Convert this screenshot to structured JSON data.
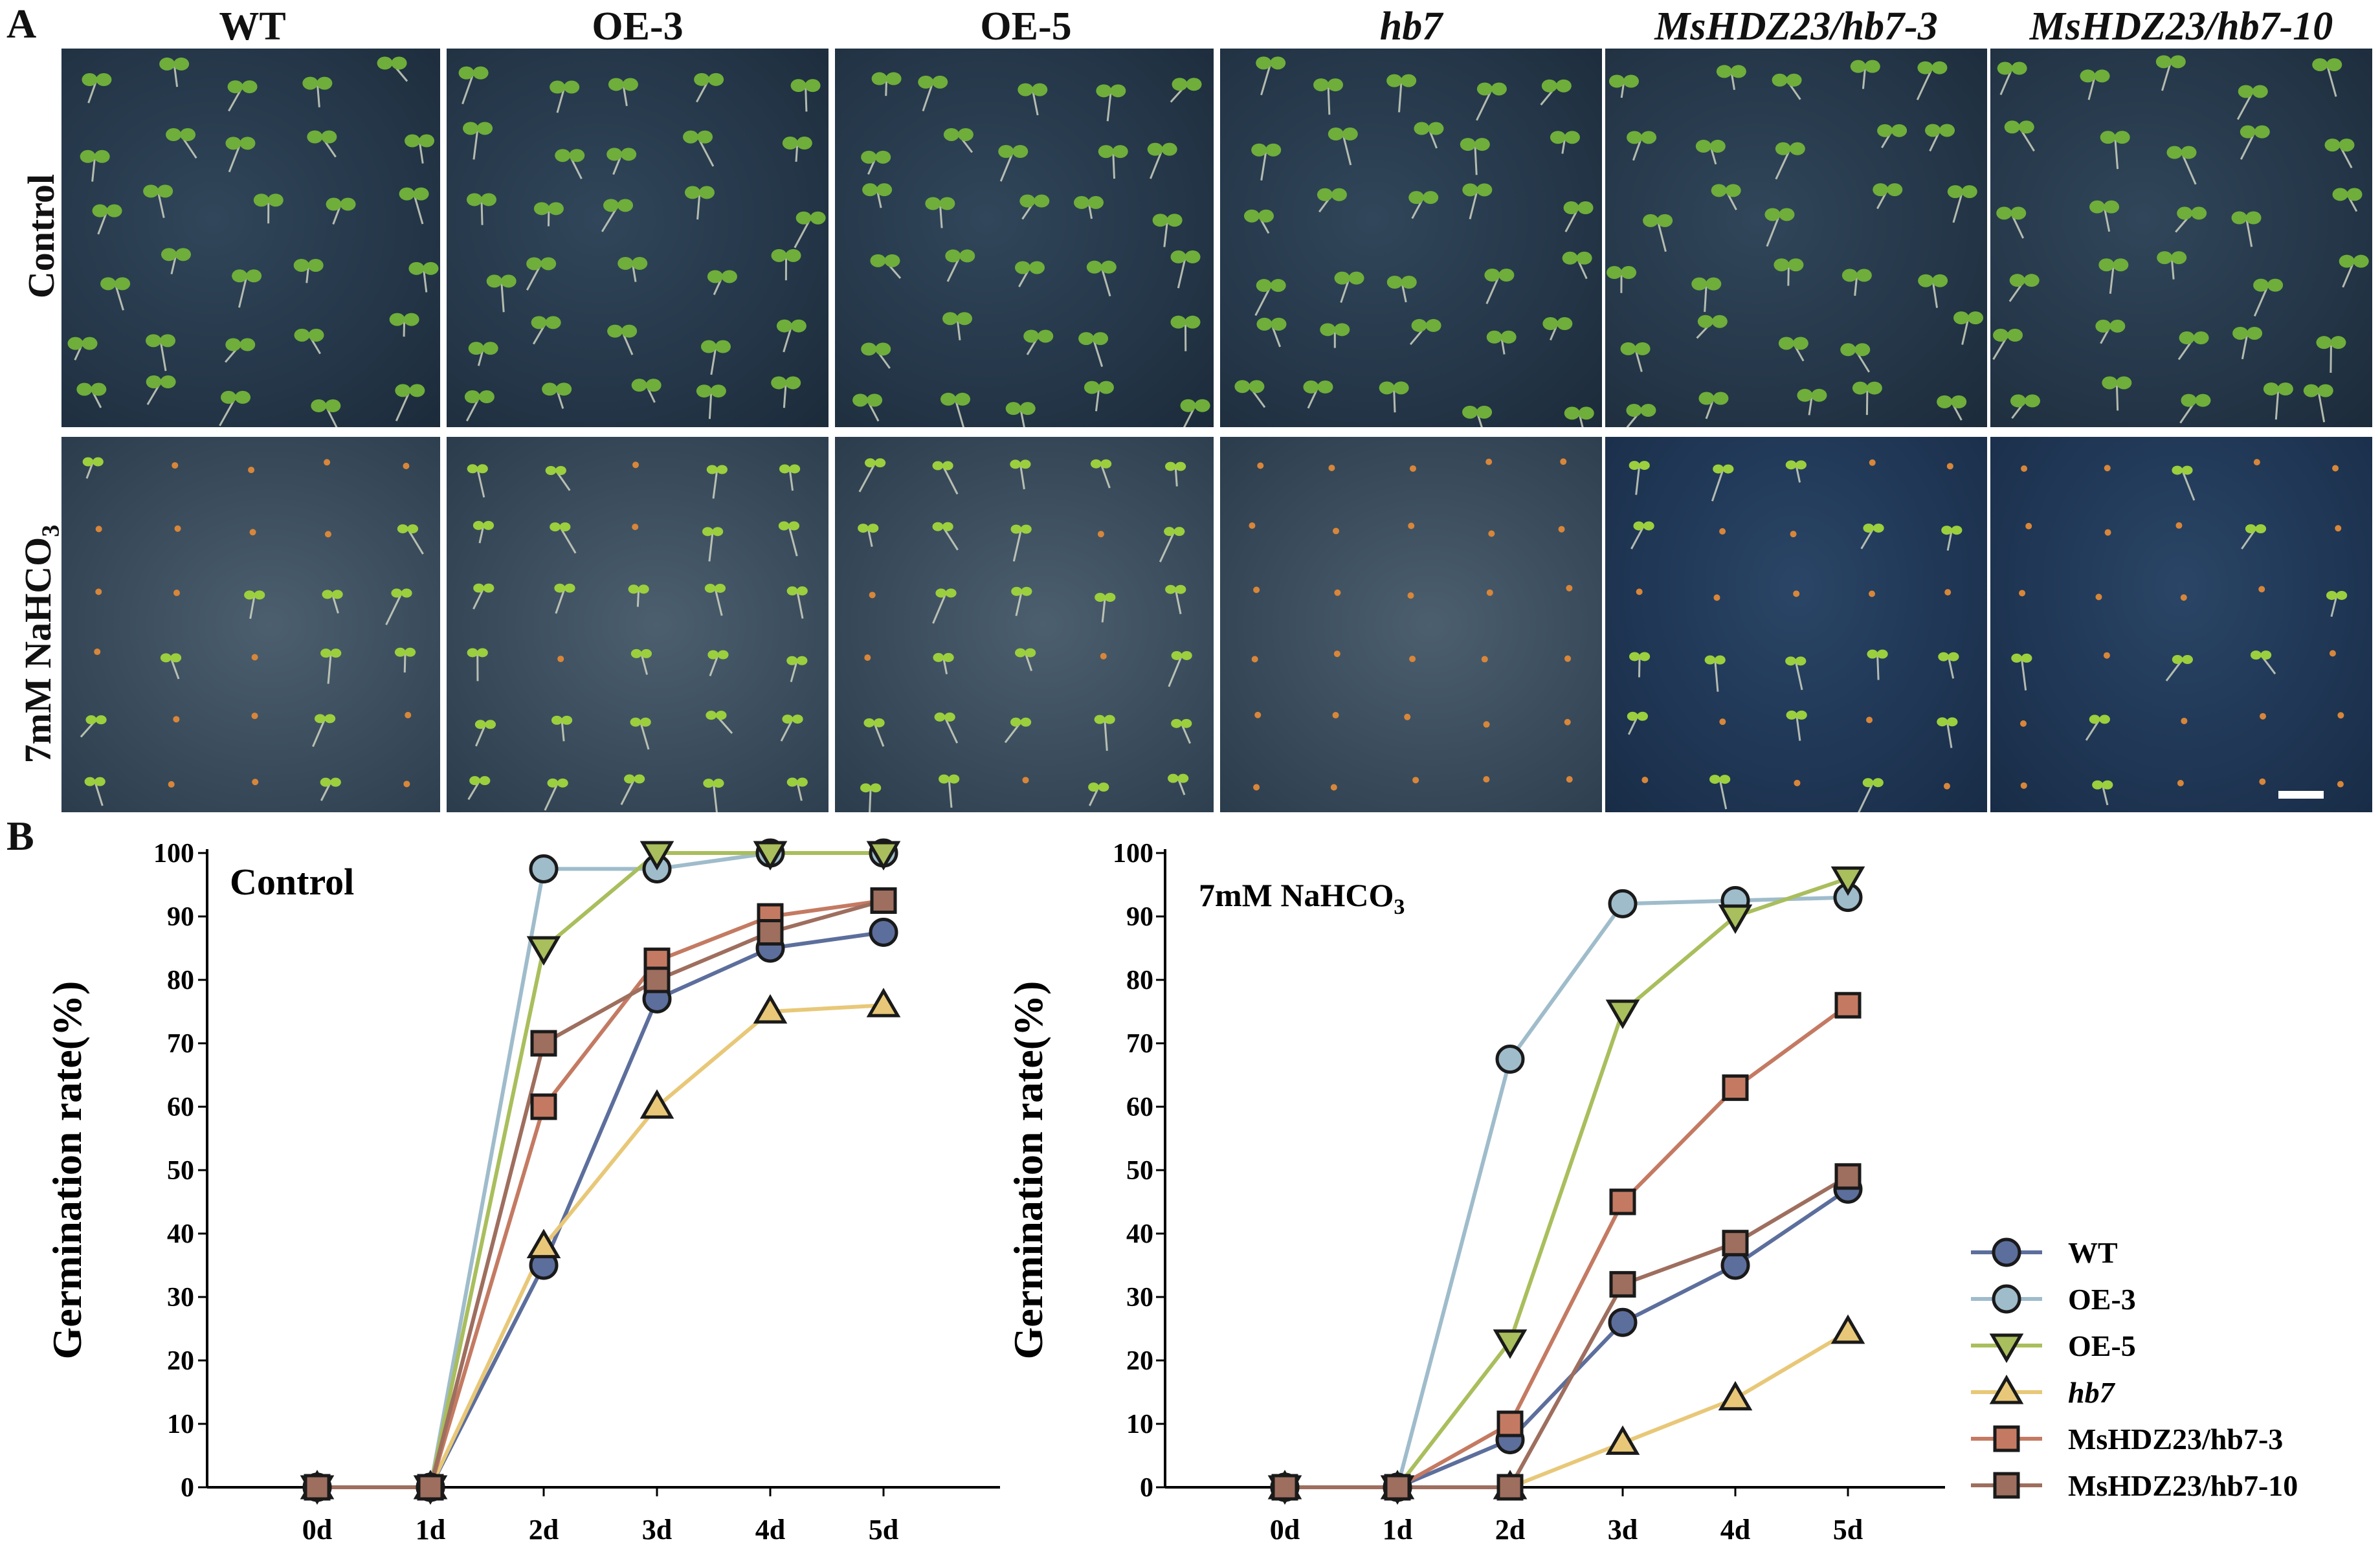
{
  "panel_letters": {
    "a": "A",
    "b": "B"
  },
  "columns": [
    {
      "label": "WT",
      "italic": false
    },
    {
      "label": "OE-3",
      "italic": false
    },
    {
      "label": "OE-5",
      "italic": false
    },
    {
      "label": "hb7",
      "italic": true
    },
    {
      "label": "MsHDZ23/hb7-3",
      "italic": true
    },
    {
      "label": "MsHDZ23/hb7-10",
      "italic": true
    }
  ],
  "rows": {
    "control": "Control",
    "salt_prefix": "7mM NaHCO",
    "salt_subscript": "3"
  },
  "colors": {
    "WT": "#5c6e9c",
    "OE-3": "#9fbccb",
    "OE-5": "#a9be5c",
    "hb7": "#e8c878",
    "MsHDZ23/hb7-3": "#c47a62",
    "MsHDZ23/hb7-10": "#9e6e5e"
  },
  "chart_data": [
    {
      "type": "line",
      "title": "Control",
      "xlabel": "",
      "ylabel": "Germination rate(%)",
      "categories": [
        "0d",
        "1d",
        "2d",
        "3d",
        "4d",
        "5d"
      ],
      "ylim": [
        0,
        100
      ],
      "yticks": [
        0,
        10,
        20,
        30,
        40,
        50,
        60,
        70,
        80,
        90,
        100
      ],
      "series": [
        {
          "name": "WT",
          "marker": "circle",
          "values": [
            0,
            0,
            35,
            77,
            85,
            87.5
          ]
        },
        {
          "name": "OE-3",
          "marker": "circle",
          "values": [
            0,
            0,
            97.5,
            97.5,
            100,
            100
          ]
        },
        {
          "name": "OE-5",
          "marker": "triangle-down",
          "values": [
            0,
            0,
            85,
            100,
            100,
            100
          ]
        },
        {
          "name": "hb7",
          "marker": "triangle-up",
          "values": [
            0,
            0,
            38,
            60,
            75,
            76
          ]
        },
        {
          "name": "MsHDZ23/hb7-3",
          "marker": "square",
          "values": [
            0,
            0,
            60,
            83,
            90,
            92.5
          ]
        },
        {
          "name": "MsHDZ23/hb7-10",
          "marker": "square",
          "values": [
            0,
            0,
            70,
            80,
            87.5,
            92.5
          ]
        }
      ]
    },
    {
      "type": "line",
      "title_prefix": "7mM NaHCO",
      "title_subscript": "3",
      "xlabel": "",
      "ylabel": "Germination rate(%)",
      "categories": [
        "0d",
        "1d",
        "2d",
        "3d",
        "4d",
        "5d"
      ],
      "ylim": [
        0,
        100
      ],
      "yticks": [
        0,
        10,
        20,
        30,
        40,
        50,
        60,
        70,
        80,
        90,
        100
      ],
      "legend_position": "right",
      "series": [
        {
          "name": "WT",
          "marker": "circle",
          "values": [
            0,
            0,
            7.5,
            26,
            35,
            47
          ]
        },
        {
          "name": "OE-3",
          "marker": "circle",
          "values": [
            0,
            0,
            67.5,
            92,
            92.5,
            93
          ]
        },
        {
          "name": "OE-5",
          "marker": "triangle-down",
          "values": [
            0,
            0,
            23,
            75,
            90,
            96
          ]
        },
        {
          "name": "hb7",
          "marker": "triangle-up",
          "values": [
            0,
            0,
            0,
            7,
            14,
            24.5
          ]
        },
        {
          "name": "MsHDZ23/hb7-3",
          "marker": "square",
          "values": [
            0,
            0,
            10,
            45,
            63,
            76
          ]
        },
        {
          "name": "MsHDZ23/hb7-10",
          "marker": "square",
          "values": [
            0,
            0,
            0,
            32,
            38.5,
            49
          ]
        }
      ]
    }
  ],
  "legend": [
    {
      "label": "WT",
      "italic": false
    },
    {
      "label": "OE-3",
      "italic": false
    },
    {
      "label": "OE-5",
      "italic": false
    },
    {
      "label": "hb7",
      "italic": true
    },
    {
      "label": "MsHDZ23/hb7-3",
      "italic": false
    },
    {
      "label": "MsHDZ23/hb7-10",
      "italic": false
    }
  ]
}
